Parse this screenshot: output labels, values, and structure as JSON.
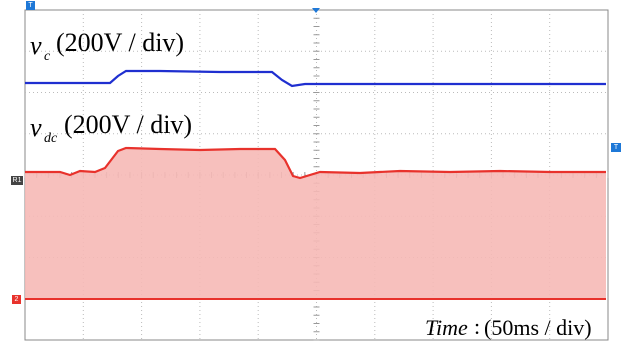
{
  "traces": {
    "vc": {
      "symbol": "v",
      "subscript": "c",
      "scale": "(200V / div)"
    },
    "vdc": {
      "symbol": "v",
      "subscript": "dc",
      "scale": "(200V / div)"
    }
  },
  "time": {
    "symbol": "Time",
    "separator": ":",
    "scale": "(50ms / div)"
  },
  "markers": {
    "trigger_left": "T",
    "trigger_right": "T",
    "ref": "R1",
    "channel": "2"
  }
}
